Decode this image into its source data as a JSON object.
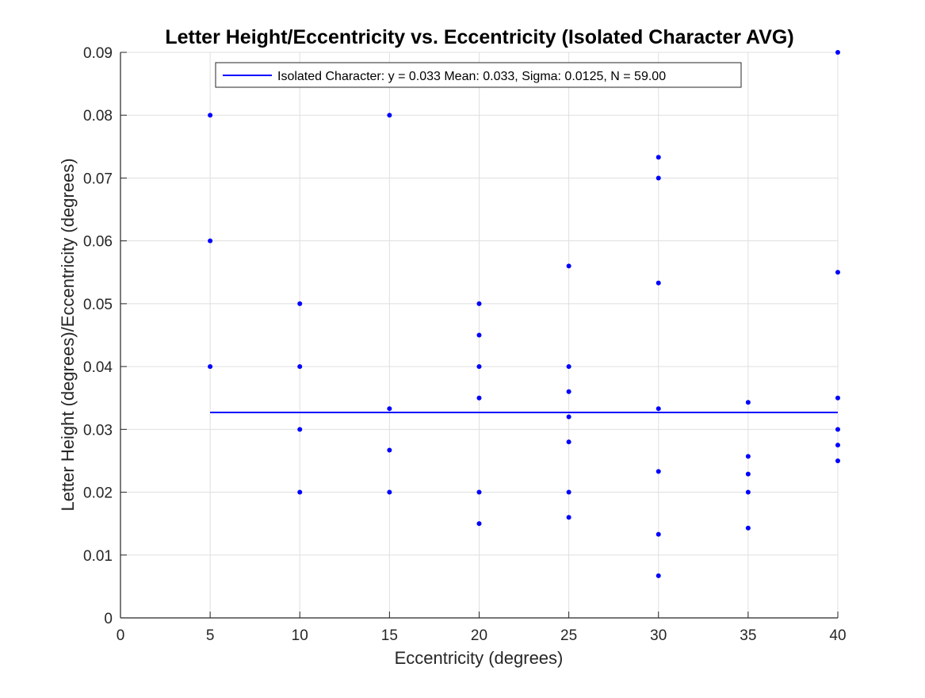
{
  "chart_data": {
    "type": "scatter",
    "title": "Letter Height/Eccentricity vs. Eccentricity (Isolated Character AVG)",
    "xlabel": "Eccentricity (degrees)",
    "ylabel": "Letter Height (degrees)/Eccentricity (degrees)",
    "xlim": [
      0,
      40
    ],
    "ylim": [
      0,
      0.09
    ],
    "xticks": [
      0,
      5,
      10,
      15,
      20,
      25,
      30,
      35,
      40
    ],
    "yticks": [
      0,
      0.01,
      0.02,
      0.03,
      0.04,
      0.05,
      0.06,
      0.07,
      0.08,
      0.09
    ],
    "xtick_labels": [
      "0",
      "5",
      "10",
      "15",
      "20",
      "25",
      "30",
      "35",
      "40"
    ],
    "ytick_labels": [
      "0",
      "0.01",
      "0.02",
      "0.03",
      "0.04",
      "0.05",
      "0.06",
      "0.07",
      "0.08",
      "0.09"
    ],
    "grid": true,
    "legend": {
      "location": "top-center",
      "entries": [
        "Isolated Character: y = 0.033 Mean: 0.033, Sigma: 0.0125, N = 59.00"
      ]
    },
    "series": [
      {
        "kind": "scatter",
        "color": "#0000ff",
        "points": [
          [
            5,
            0.08
          ],
          [
            5,
            0.06
          ],
          [
            5,
            0.04
          ],
          [
            10,
            0.05
          ],
          [
            10,
            0.04
          ],
          [
            10,
            0.03
          ],
          [
            10,
            0.02
          ],
          [
            15,
            0.08
          ],
          [
            15,
            0.0333
          ],
          [
            15,
            0.0267
          ],
          [
            15,
            0.02
          ],
          [
            20,
            0.05
          ],
          [
            20,
            0.045
          ],
          [
            20,
            0.04
          ],
          [
            20,
            0.035
          ],
          [
            20,
            0.02
          ],
          [
            20,
            0.015
          ],
          [
            25,
            0.056
          ],
          [
            25,
            0.04
          ],
          [
            25,
            0.036
          ],
          [
            25,
            0.032
          ],
          [
            25,
            0.028
          ],
          [
            25,
            0.02
          ],
          [
            25,
            0.016
          ],
          [
            30,
            0.0733
          ],
          [
            30,
            0.07
          ],
          [
            30,
            0.0533
          ],
          [
            30,
            0.0333
          ],
          [
            30,
            0.0233
          ],
          [
            30,
            0.0133
          ],
          [
            30,
            0.0067
          ],
          [
            35,
            0.0343
          ],
          [
            35,
            0.0257
          ],
          [
            35,
            0.0229
          ],
          [
            35,
            0.02
          ],
          [
            35,
            0.0143
          ],
          [
            40,
            0.09
          ],
          [
            40,
            0.055
          ],
          [
            40,
            0.035
          ],
          [
            40,
            0.03
          ],
          [
            40,
            0.0275
          ],
          [
            40,
            0.025
          ]
        ]
      },
      {
        "kind": "line",
        "name": "Isolated Character: y = 0.033 Mean: 0.033, Sigma: 0.0125, N = 59.00",
        "color": "#0000ff",
        "x": [
          5,
          40
        ],
        "y": [
          0.0327,
          0.0327
        ]
      }
    ]
  }
}
